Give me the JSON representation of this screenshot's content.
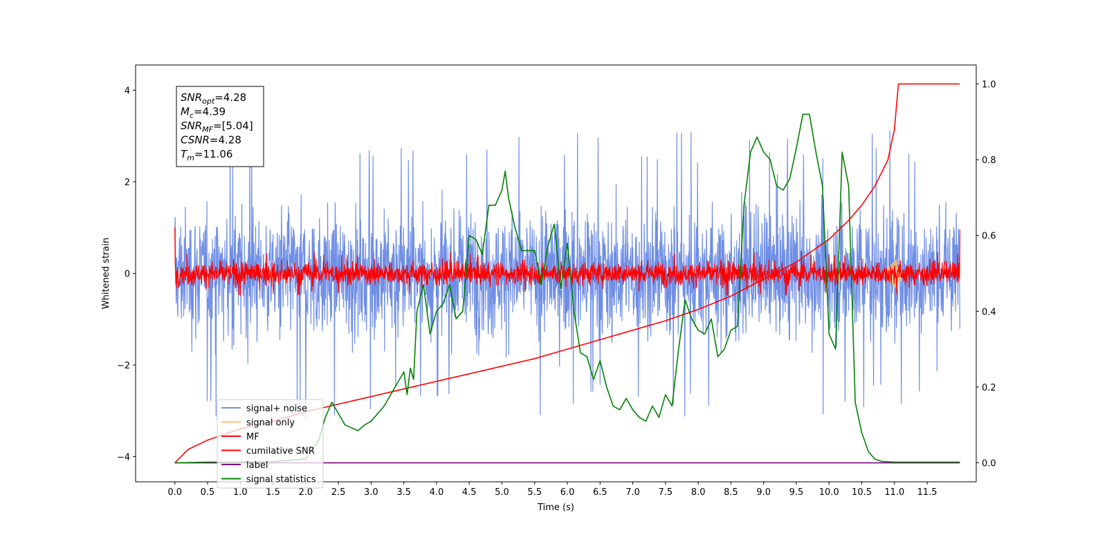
{
  "chart_data": {
    "type": "line",
    "xlabel": "Time (s)",
    "ylabel": "Whitened strain",
    "xlim": [
      -0.6,
      12.25
    ],
    "ylim": [
      -4.55,
      4.55
    ],
    "ylim_right": [
      -0.05,
      1.05
    ],
    "x_ticks": [
      0.0,
      0.5,
      1.0,
      1.5,
      2.0,
      2.5,
      3.0,
      3.5,
      4.0,
      4.5,
      5.0,
      5.5,
      6.0,
      6.5,
      7.0,
      7.5,
      8.0,
      8.5,
      9.0,
      9.5,
      10.0,
      10.5,
      11.0,
      11.5
    ],
    "x_tick_labels": [
      "0.0",
      "0.5",
      "1.0",
      "1.5",
      "2.0",
      "2.5",
      "3.0",
      "3.5",
      "4.0",
      "4.5",
      "5.0",
      "5.5",
      "6.0",
      "6.5",
      "7.0",
      "7.5",
      "8.0",
      "8.5",
      "9.0",
      "9.5",
      "10.0",
      "10.5",
      "11.0",
      "11.5"
    ],
    "y_ticks": [
      -4,
      -2,
      0,
      2,
      4
    ],
    "y_tick_labels": [
      "−4",
      "−2",
      "0",
      "2",
      "4"
    ],
    "y_ticks_right": [
      0.0,
      0.2,
      0.4,
      0.6,
      0.8,
      1.0
    ],
    "y_tick_labels_right": [
      "0.0",
      "0.2",
      "0.4",
      "0.6",
      "0.8",
      "1.0"
    ],
    "legend_position": "lower-left",
    "annotation": [
      {
        "base": "SNR",
        "sub": "opt",
        "value": "=4.28"
      },
      {
        "base": "M",
        "sub": "c",
        "value": "=4.39"
      },
      {
        "base": "SNR",
        "sub": "MF",
        "value": "=[5.04]"
      },
      {
        "base": "CSNR",
        "sub": "",
        "value": "=4.28"
      },
      {
        "base": "T",
        "sub": "m",
        "value": "=11.06"
      }
    ],
    "series": [
      {
        "name": "signal+ noise",
        "color": "#6f8ee6",
        "axis": "left",
        "style": "noise",
        "x_range": [
          0.0,
          12.0
        ],
        "envelope": [
          -2.7,
          2.7
        ],
        "peak_range": [
          -4.1,
          4.15
        ]
      },
      {
        "name": "signal only",
        "color": "#f5c26b",
        "axis": "left",
        "style": "chirp",
        "x_range": [
          10.8,
          11.1
        ],
        "envelope": [
          -0.45,
          0.4
        ]
      },
      {
        "name": "MF",
        "color": "#ff0000",
        "axis": "left",
        "style": "noise",
        "x_range": [
          0.0,
          12.0
        ],
        "envelope": [
          -0.35,
          0.55
        ],
        "edge_values": [
          1.0,
          0.95
        ]
      },
      {
        "name": "cumilative SNR",
        "color": "#ff0000",
        "axis": "right",
        "x": [
          0.0,
          0.2,
          0.5,
          1.0,
          1.5,
          2.0,
          2.5,
          3.0,
          3.5,
          4.0,
          4.5,
          5.0,
          5.5,
          6.0,
          6.5,
          7.0,
          7.5,
          8.0,
          8.5,
          9.0,
          9.5,
          10.0,
          10.3,
          10.5,
          10.7,
          10.9,
          11.0,
          11.06,
          12.0
        ],
        "y": [
          0.0,
          0.035,
          0.06,
          0.09,
          0.11,
          0.135,
          0.155,
          0.175,
          0.195,
          0.215,
          0.235,
          0.255,
          0.275,
          0.3,
          0.325,
          0.35,
          0.375,
          0.405,
          0.44,
          0.485,
          0.53,
          0.59,
          0.64,
          0.68,
          0.73,
          0.8,
          0.88,
          1.0,
          1.0
        ]
      },
      {
        "name": "label",
        "color": "#800080",
        "axis": "right",
        "x": [
          0.0,
          12.0
        ],
        "y": [
          0.0,
          0.0
        ]
      },
      {
        "name": "signal statistics",
        "color": "#008000",
        "axis": "right",
        "x": [
          0.0,
          0.5,
          1.0,
          1.5,
          2.0,
          2.2,
          2.3,
          2.4,
          2.6,
          2.8,
          2.9,
          3.0,
          3.2,
          3.3,
          3.5,
          3.55,
          3.6,
          3.65,
          3.7,
          3.8,
          3.9,
          4.0,
          4.1,
          4.2,
          4.3,
          4.4,
          4.5,
          4.6,
          4.7,
          4.8,
          4.9,
          5.0,
          5.05,
          5.1,
          5.2,
          5.3,
          5.5,
          5.6,
          5.7,
          5.8,
          5.9,
          6.0,
          6.1,
          6.2,
          6.3,
          6.4,
          6.5,
          6.6,
          6.7,
          6.8,
          6.9,
          7.0,
          7.1,
          7.2,
          7.3,
          7.4,
          7.5,
          7.6,
          7.7,
          7.8,
          7.9,
          8.0,
          8.1,
          8.2,
          8.3,
          8.4,
          8.5,
          8.6,
          8.7,
          8.8,
          8.9,
          9.0,
          9.1,
          9.2,
          9.3,
          9.4,
          9.5,
          9.6,
          9.7,
          9.8,
          9.9,
          10.0,
          10.1,
          10.2,
          10.3,
          10.4,
          10.5,
          10.6,
          10.7,
          10.8,
          11.0,
          11.5,
          12.0
        ],
        "y": [
          0.0,
          0.002,
          0.002,
          0.003,
          0.01,
          0.06,
          0.12,
          0.16,
          0.1,
          0.085,
          0.1,
          0.11,
          0.15,
          0.18,
          0.24,
          0.18,
          0.25,
          0.22,
          0.4,
          0.47,
          0.34,
          0.4,
          0.42,
          0.47,
          0.38,
          0.4,
          0.6,
          0.59,
          0.55,
          0.68,
          0.68,
          0.72,
          0.77,
          0.7,
          0.62,
          0.56,
          0.56,
          0.47,
          0.57,
          0.63,
          0.46,
          0.58,
          0.4,
          0.29,
          0.28,
          0.22,
          0.27,
          0.2,
          0.15,
          0.14,
          0.17,
          0.14,
          0.12,
          0.11,
          0.15,
          0.12,
          0.18,
          0.15,
          0.3,
          0.43,
          0.38,
          0.35,
          0.34,
          0.38,
          0.28,
          0.3,
          0.35,
          0.36,
          0.68,
          0.82,
          0.86,
          0.82,
          0.8,
          0.73,
          0.72,
          0.75,
          0.83,
          0.92,
          0.92,
          0.82,
          0.73,
          0.34,
          0.3,
          0.82,
          0.73,
          0.16,
          0.08,
          0.03,
          0.01,
          0.004,
          0.002,
          0.002,
          0.002
        ]
      }
    ]
  }
}
